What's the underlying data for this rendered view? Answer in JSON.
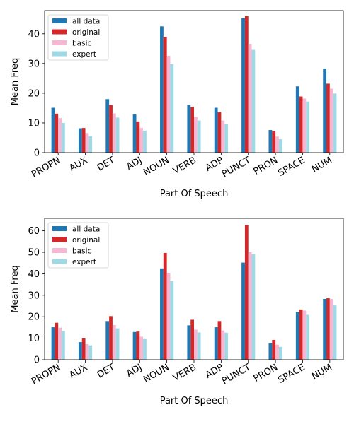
{
  "chart_data": [
    {
      "type": "bar",
      "categories": [
        "PROPN",
        "AUX",
        "DET",
        "ADJ",
        "NOUN",
        "VERB",
        "ADP",
        "PUNCT",
        "PRON",
        "SPACE",
        "NUM"
      ],
      "series": [
        {
          "name": "all data",
          "color": "#1f77b4",
          "values": [
            15.1,
            8.2,
            18.0,
            12.9,
            42.5,
            16.0,
            15.1,
            45.2,
            7.6,
            22.3,
            28.3
          ]
        },
        {
          "name": "original",
          "color": "#d62728",
          "values": [
            13.1,
            8.3,
            16.0,
            10.5,
            38.9,
            15.4,
            13.6,
            45.9,
            7.3,
            18.9,
            23.2
          ]
        },
        {
          "name": "basic",
          "color": "#f7b6d2",
          "values": [
            11.6,
            6.6,
            13.2,
            8.3,
            32.6,
            12.0,
            10.8,
            36.6,
            5.4,
            18.2,
            21.5
          ]
        },
        {
          "name": "expert",
          "color": "#9edae5",
          "values": [
            10.0,
            5.5,
            11.8,
            7.4,
            29.8,
            10.8,
            9.5,
            34.6,
            4.5,
            17.2,
            19.9
          ]
        }
      ],
      "xlabel": "Part Of Speech",
      "ylabel": "Mean Freq",
      "ylim": [
        0,
        47.8
      ],
      "yticks": [
        0,
        10,
        20,
        30,
        40
      ],
      "legend": "top-left",
      "grid": false
    },
    {
      "type": "bar",
      "categories": [
        "PROPN",
        "AUX",
        "DET",
        "ADJ",
        "NOUN",
        "VERB",
        "ADP",
        "PUNCT",
        "PRON",
        "SPACE",
        "NUM"
      ],
      "series": [
        {
          "name": "all data",
          "color": "#1f77b4",
          "values": [
            15.1,
            8.2,
            18.0,
            12.9,
            42.5,
            16.0,
            15.1,
            45.2,
            7.6,
            22.3,
            28.3
          ]
        },
        {
          "name": "original",
          "color": "#d62728",
          "values": [
            17.2,
            9.9,
            20.3,
            13.1,
            49.7,
            18.6,
            18.0,
            62.7,
            9.2,
            23.4,
            28.6
          ]
        },
        {
          "name": "basic",
          "color": "#f7b6d2",
          "values": [
            14.9,
            7.2,
            16.1,
            10.7,
            40.4,
            14.0,
            13.6,
            50.0,
            7.0,
            22.9,
            28.3
          ]
        },
        {
          "name": "expert",
          "color": "#9edae5",
          "values": [
            13.4,
            6.7,
            14.6,
            9.6,
            36.7,
            12.7,
            12.6,
            49.0,
            6.0,
            20.9,
            25.3
          ]
        }
      ],
      "xlabel": "Part Of Speech",
      "ylabel": "Mean Freq",
      "ylim": [
        0,
        65.8
      ],
      "yticks": [
        0,
        10,
        20,
        30,
        40,
        50,
        60
      ],
      "legend": "top-left",
      "grid": false
    }
  ]
}
